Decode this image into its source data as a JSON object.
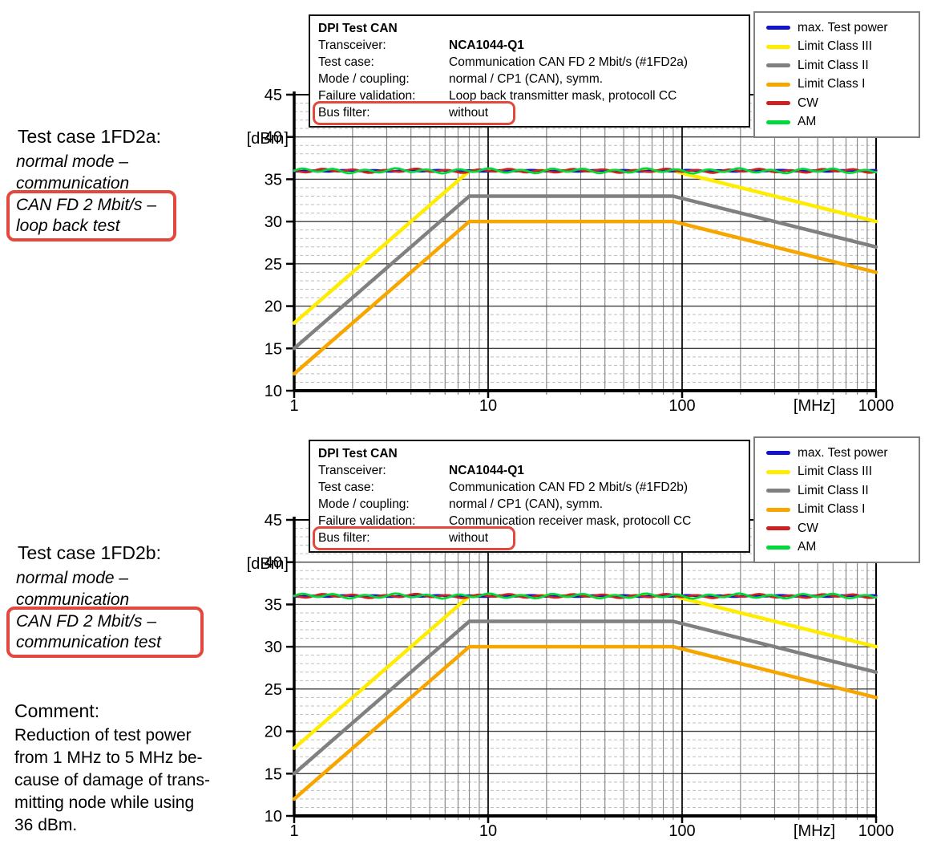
{
  "page": {
    "background": "#ffffff",
    "accent_red": "#e2483d"
  },
  "left_column": {
    "block_a": {
      "title": "Test case 1FD2a:",
      "subtitle_lines": [
        "normal mode –",
        "communication"
      ],
      "boxed_lines": [
        "CAN FD 2 Mbit/s –",
        "loop back test"
      ]
    },
    "block_b": {
      "title": "Test case 1FD2b:",
      "subtitle_lines": [
        "normal mode –",
        "communication"
      ],
      "boxed_lines": [
        "CAN FD 2 Mbit/s –",
        "communication test"
      ]
    },
    "comment": {
      "title": "Comment:",
      "lines": [
        "Reduction of test power",
        "from 1 MHz to 5 MHz be-",
        "cause of damage of trans-",
        "mitting node while using",
        "36 dBm."
      ]
    }
  },
  "charts": [
    {
      "info_box": {
        "title": "DPI Test CAN",
        "rows": [
          {
            "label": "Transceiver:",
            "value": "NCA1044-Q1",
            "bold": true
          },
          {
            "label": "Test case:",
            "value": "Communication CAN FD 2 Mbit/s (#1FD2a)"
          },
          {
            "label": "Mode / coupling:",
            "value": "normal / CP1 (CAN), symm."
          },
          {
            "label": "Failure validation:",
            "value": "Loop back transmitter mask, protocoll CC"
          },
          {
            "label": "Bus filter:",
            "value": "without",
            "highlighted": true
          }
        ]
      },
      "legend": [
        {
          "label": "max. Test power",
          "color": "#1414cc"
        },
        {
          "label": "Limit Class III",
          "color": "#ffec00"
        },
        {
          "label": "Limit Class II",
          "color": "#808080"
        },
        {
          "label": "Limit Class I",
          "color": "#f7a600"
        },
        {
          "label": "CW",
          "color": "#cc2121"
        },
        {
          "label": "AM",
          "color": "#00d93c"
        }
      ]
    },
    {
      "info_box": {
        "title": "DPI Test CAN",
        "rows": [
          {
            "label": "Transceiver:",
            "value": "NCA1044-Q1",
            "bold": true
          },
          {
            "label": "Test case:",
            "value": "Communication CAN FD 2 Mbit/s (#1FD2b)"
          },
          {
            "label": "Mode / coupling:",
            "value": "normal / CP1 (CAN), symm."
          },
          {
            "label": "Failure validation:",
            "value": "Communication receiver mask, protocoll CC"
          },
          {
            "label": "Bus filter:",
            "value": "without",
            "highlighted": true
          }
        ]
      },
      "legend": [
        {
          "label": "max. Test power",
          "color": "#1414cc"
        },
        {
          "label": "Limit Class III",
          "color": "#ffec00"
        },
        {
          "label": "Limit Class II",
          "color": "#808080"
        },
        {
          "label": "Limit Class I",
          "color": "#f7a600"
        },
        {
          "label": "CW",
          "color": "#cc2121"
        },
        {
          "label": "AM",
          "color": "#00d93c"
        }
      ]
    }
  ],
  "chart_data": [
    {
      "type": "line",
      "title": "DPI Test CAN - Communication CAN FD 2 Mbit/s (#1FD2a), loop back transmitter mask",
      "xlabel": "[MHz]",
      "ylabel": "[dBm]",
      "x_scale": "log",
      "xlim": [
        1,
        1000
      ],
      "ylim": [
        10,
        45
      ],
      "x_ticks": [
        1,
        10,
        100,
        1000
      ],
      "y_ticks": [
        10,
        15,
        20,
        25,
        30,
        35,
        40,
        45
      ],
      "grid": "major+minor",
      "legend_position": "top-right",
      "series": [
        {
          "name": "max. Test power",
          "color": "#1414cc",
          "noisy": true,
          "points": [
            [
              1,
              36
            ],
            [
              1000,
              36
            ]
          ]
        },
        {
          "name": "Limit Class III",
          "color": "#ffec00",
          "points": [
            [
              1,
              18
            ],
            [
              8,
              36
            ],
            [
              90,
              36
            ],
            [
              1000,
              30
            ]
          ]
        },
        {
          "name": "Limit Class II",
          "color": "#808080",
          "points": [
            [
              1,
              15
            ],
            [
              8,
              33
            ],
            [
              90,
              33
            ],
            [
              1000,
              27
            ]
          ]
        },
        {
          "name": "Limit Class I",
          "color": "#f7a600",
          "points": [
            [
              1,
              12
            ],
            [
              8,
              30
            ],
            [
              90,
              30
            ],
            [
              1000,
              24
            ]
          ]
        },
        {
          "name": "CW",
          "color": "#cc2121",
          "noisy": true,
          "points": [
            [
              1,
              36
            ],
            [
              1000,
              36
            ]
          ]
        },
        {
          "name": "AM",
          "color": "#00d93c",
          "noisy": true,
          "points": [
            [
              1,
              36
            ],
            [
              1000,
              36
            ]
          ]
        }
      ]
    },
    {
      "type": "line",
      "title": "DPI Test CAN - Communication CAN FD 2 Mbit/s (#1FD2b), communication receiver mask",
      "xlabel": "[MHz]",
      "ylabel": "[dBm]",
      "x_scale": "log",
      "xlim": [
        1,
        1000
      ],
      "ylim": [
        10,
        45
      ],
      "x_ticks": [
        1,
        10,
        100,
        1000
      ],
      "y_ticks": [
        10,
        15,
        20,
        25,
        30,
        35,
        40,
        45
      ],
      "grid": "major+minor",
      "legend_position": "top-right",
      "series": [
        {
          "name": "max. Test power",
          "color": "#1414cc",
          "noisy": true,
          "points": [
            [
              1,
              36
            ],
            [
              1000,
              36
            ]
          ]
        },
        {
          "name": "Limit Class III",
          "color": "#ffec00",
          "points": [
            [
              1,
              18
            ],
            [
              8,
              36
            ],
            [
              90,
              36
            ],
            [
              1000,
              30
            ]
          ]
        },
        {
          "name": "Limit Class II",
          "color": "#808080",
          "points": [
            [
              1,
              15
            ],
            [
              8,
              33
            ],
            [
              90,
              33
            ],
            [
              1000,
              27
            ]
          ]
        },
        {
          "name": "Limit Class I",
          "color": "#f7a600",
          "points": [
            [
              1,
              12
            ],
            [
              8,
              30
            ],
            [
              90,
              30
            ],
            [
              1000,
              24
            ]
          ]
        },
        {
          "name": "CW",
          "color": "#cc2121",
          "noisy": true,
          "points": [
            [
              1,
              36
            ],
            [
              1000,
              36
            ]
          ]
        },
        {
          "name": "AM",
          "color": "#00d93c",
          "noisy": true,
          "points": [
            [
              1,
              36
            ],
            [
              1000,
              36
            ]
          ]
        }
      ]
    }
  ]
}
